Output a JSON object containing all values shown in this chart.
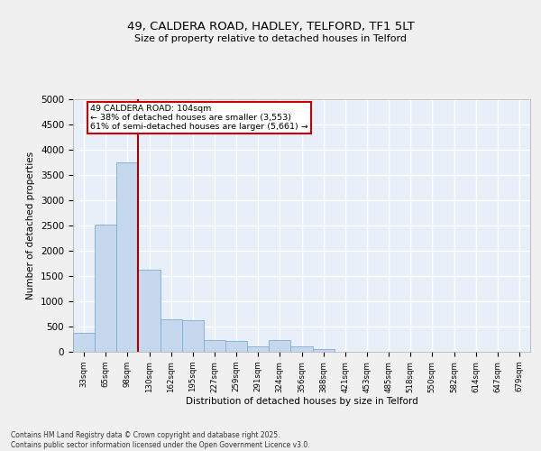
{
  "title_line1": "49, CALDERA ROAD, HADLEY, TELFORD, TF1 5LT",
  "title_line2": "Size of property relative to detached houses in Telford",
  "xlabel": "Distribution of detached houses by size in Telford",
  "ylabel": "Number of detached properties",
  "categories": [
    "33sqm",
    "65sqm",
    "98sqm",
    "130sqm",
    "162sqm",
    "195sqm",
    "227sqm",
    "259sqm",
    "291sqm",
    "324sqm",
    "356sqm",
    "388sqm",
    "421sqm",
    "453sqm",
    "485sqm",
    "518sqm",
    "550sqm",
    "582sqm",
    "614sqm",
    "647sqm",
    "679sqm"
  ],
  "values": [
    370,
    2520,
    3750,
    1620,
    650,
    620,
    230,
    220,
    100,
    240,
    110,
    50,
    0,
    0,
    0,
    0,
    0,
    0,
    0,
    0,
    0
  ],
  "bar_color": "#c5d8ee",
  "bar_edge_color": "#7aadd4",
  "vline_color": "#aa0000",
  "annotation_text": "49 CALDERA ROAD: 104sqm\n← 38% of detached houses are smaller (3,553)\n61% of semi-detached houses are larger (5,661) →",
  "annotation_box_color": "#cc0000",
  "ylim": [
    0,
    5000
  ],
  "yticks": [
    0,
    500,
    1000,
    1500,
    2000,
    2500,
    3000,
    3500,
    4000,
    4500,
    5000
  ],
  "bg_color": "#e8eff8",
  "grid_color": "#ffffff",
  "footer_text": "Contains HM Land Registry data © Crown copyright and database right 2025.\nContains public sector information licensed under the Open Government Licence v3.0.",
  "figsize": [
    6.0,
    5.0
  ],
  "dpi": 100
}
